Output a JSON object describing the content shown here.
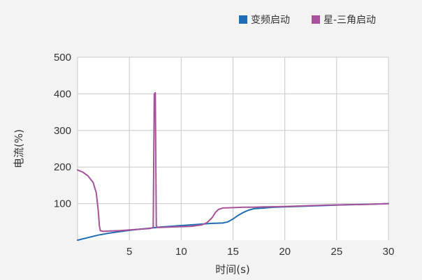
{
  "chart_data": {
    "type": "line",
    "title": "",
    "xlabel": "时间(s)",
    "ylabel": "电流(%)",
    "xlim": [
      0,
      30
    ],
    "ylim": [
      0,
      500
    ],
    "x_ticks": [
      5,
      10,
      15,
      20,
      25,
      30
    ],
    "y_ticks": [
      100,
      200,
      300,
      400,
      500
    ],
    "grid": true,
    "legend_position": "top-right",
    "series": [
      {
        "name": "变频启动",
        "color": "#1f6db5",
        "x": [
          0,
          1,
          2,
          3,
          4,
          5,
          6,
          7,
          8,
          9,
          10,
          11,
          12,
          13,
          14,
          14.5,
          15,
          15.5,
          16,
          16.5,
          17,
          18,
          19,
          20,
          22,
          24,
          26,
          28,
          30
        ],
        "y": [
          0,
          7,
          14,
          19,
          23,
          27,
          30,
          33,
          36,
          38,
          40,
          42,
          44,
          46,
          47,
          50,
          58,
          68,
          76,
          82,
          86,
          88,
          90,
          91,
          93,
          95,
          97,
          98,
          100
        ]
      },
      {
        "name": "星-三角启动",
        "color": "#a8529c",
        "x": [
          0,
          0.5,
          1,
          1.5,
          1.8,
          2.0,
          2.1,
          2.2,
          2.5,
          3,
          4,
          5,
          6,
          7,
          7.3,
          7.4,
          7.5,
          7.6,
          7.7,
          8,
          9,
          10,
          11,
          12,
          12.5,
          13,
          13.3,
          13.6,
          14,
          15,
          16,
          17,
          18,
          20,
          22,
          24,
          26,
          28,
          30
        ],
        "y": [
          192,
          186,
          176,
          158,
          130,
          80,
          40,
          26,
          24,
          25,
          26,
          28,
          30,
          32,
          35,
          400,
          403,
          40,
          35,
          35,
          36,
          37,
          38,
          42,
          48,
          62,
          76,
          84,
          88,
          89,
          90,
          90,
          91,
          92,
          94,
          96,
          97,
          98,
          100
        ]
      }
    ]
  }
}
